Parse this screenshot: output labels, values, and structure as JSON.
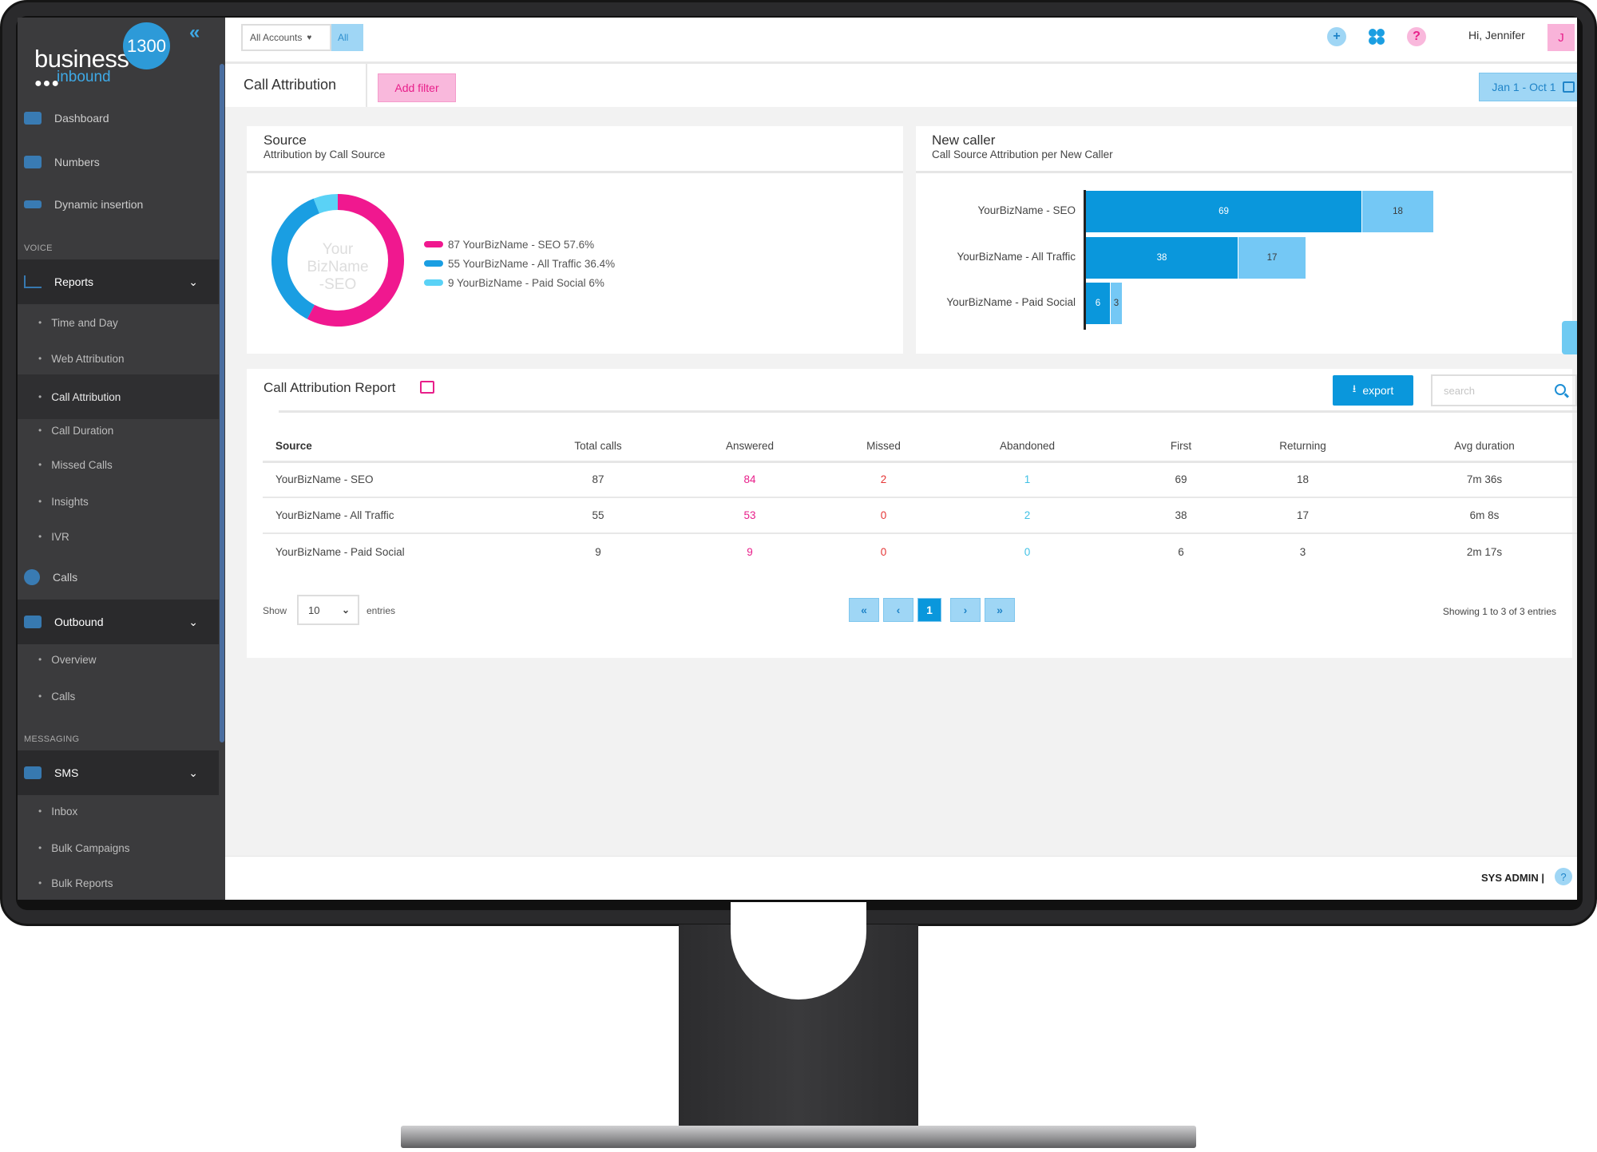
{
  "logo": {
    "brand": "business",
    "number": "1300",
    "sub": "inbound",
    "dots": "●●●"
  },
  "sidebar": {
    "collapse": "«",
    "items": [
      {
        "label": "Dashboard"
      },
      {
        "label": "Numbers"
      },
      {
        "label": "Dynamic insertion"
      }
    ],
    "voice_label": "VOICE",
    "reports": {
      "label": "Reports",
      "chevron": "⌄"
    },
    "reports_sub": [
      {
        "label": "Time and Day"
      },
      {
        "label": "Web Attribution"
      },
      {
        "label": "Call Attribution"
      },
      {
        "label": "Call Duration"
      },
      {
        "label": "Missed Calls"
      },
      {
        "label": "Insights"
      },
      {
        "label": "IVR"
      }
    ],
    "calls": {
      "label": "Calls"
    },
    "outbound": {
      "label": "Outbound",
      "chevron": "⌄"
    },
    "outbound_sub": [
      {
        "label": "Overview"
      },
      {
        "label": "Calls"
      }
    ],
    "messaging_label": "MESSAGING",
    "sms": {
      "label": "SMS",
      "chevron": "⌄"
    },
    "sms_sub": [
      {
        "label": "Inbox"
      },
      {
        "label": "Bulk Campaigns"
      },
      {
        "label": "Bulk Reports"
      }
    ]
  },
  "topbar": {
    "account_select": "All Accounts",
    "account_all": "All",
    "add_icon": "+",
    "help_icon": "?",
    "greeting": "Hi, Jennifer",
    "avatar": "J"
  },
  "titlebar": {
    "title": "Call Attribution",
    "add_filter": "Add filter",
    "date_range": "Jan 1 - Oct 1"
  },
  "source_card": {
    "title": "Source",
    "subtitle": "Attribution by Call Source",
    "donut_center": [
      "Your",
      "BizName",
      "-SEO"
    ],
    "legend": [
      {
        "text": "87 YourBizName - SEO 57.6%",
        "color": "#f0188f"
      },
      {
        "text": "55 YourBizName - All Traffic 36.4%",
        "color": "#1a9ee2"
      },
      {
        "text": "9 YourBizName - Paid Social 6%",
        "color": "#5ad2f6"
      }
    ]
  },
  "newcaller_card": {
    "title": "New caller",
    "subtitle": "Call Source Attribution per New Caller"
  },
  "chart_data": [
    {
      "type": "pie",
      "labels": [
        "YourBizName - SEO",
        "YourBizName - All Traffic",
        "YourBizName - Paid Social"
      ],
      "values": [
        87,
        55,
        9
      ],
      "percent": [
        57.6,
        36.4,
        6
      ],
      "colors": [
        "#f0188f",
        "#1a9ee2",
        "#5ad2f6"
      ]
    },
    {
      "type": "bar",
      "orientation": "horizontal",
      "stacked": true,
      "categories": [
        "YourBizName - SEO",
        "YourBizName - All Traffic",
        "YourBizName - Paid Social"
      ],
      "series": [
        {
          "values": [
            69,
            38,
            6
          ],
          "color": "#0a97dc"
        },
        {
          "values": [
            18,
            17,
            3
          ],
          "color": "#74c8f5"
        }
      ]
    }
  ],
  "report": {
    "title": "Call Attribution Report",
    "export": "export",
    "search_placeholder": "search",
    "columns": [
      "Source",
      "Total calls",
      "Answered",
      "Missed",
      "Abandoned",
      "First",
      "Returning",
      "Avg duration"
    ],
    "rows": [
      [
        "YourBizName - SEO",
        "87",
        "84",
        "2",
        "1",
        "69",
        "18",
        "7m 36s"
      ],
      [
        "YourBizName - All Traffic",
        "55",
        "53",
        "0",
        "2",
        "38",
        "17",
        "6m 8s"
      ],
      [
        "YourBizName - Paid Social",
        "9",
        "9",
        "0",
        "0",
        "6",
        "3",
        "2m 17s"
      ]
    ],
    "show_label": "Show",
    "page_size": "10",
    "entries_label": "entries",
    "pager": {
      "first": "«",
      "prev": "‹",
      "current": "1",
      "next": "›",
      "last": "»"
    },
    "showing": "Showing 1 to 3 of 3 entries"
  },
  "footer": {
    "user": "SYS ADMIN",
    "separator": "|",
    "help": "?"
  }
}
